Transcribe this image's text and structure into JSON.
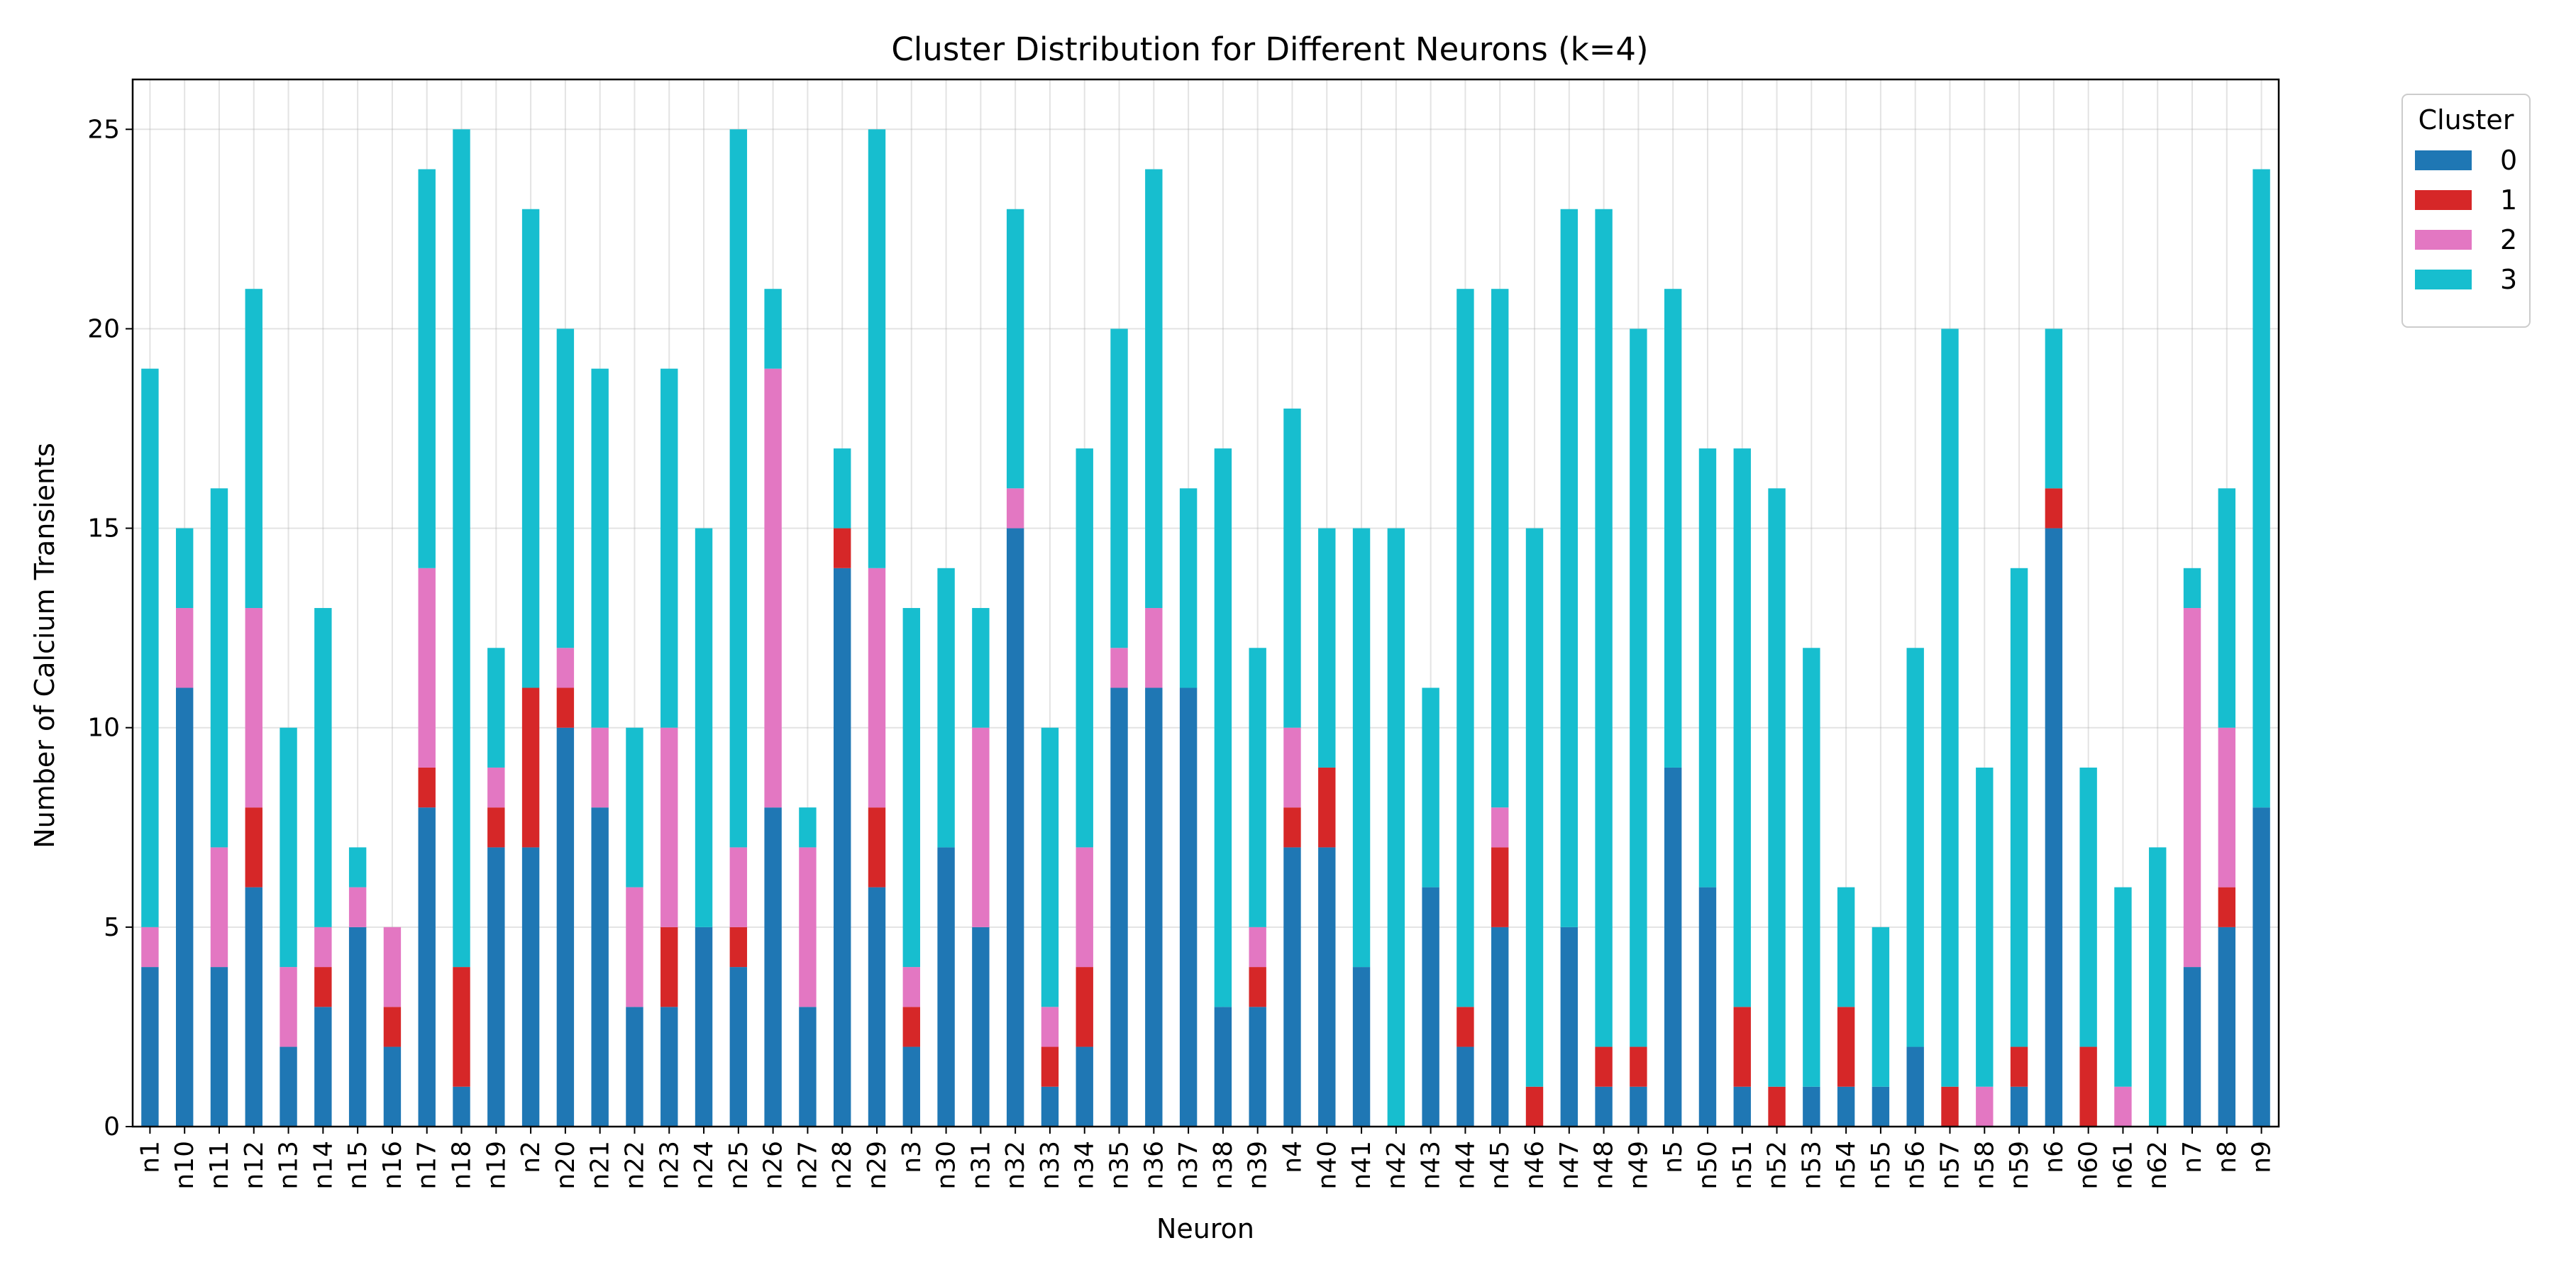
{
  "chart_data": {
    "type": "bar",
    "stacked": true,
    "title": "Cluster Distribution for Different Neurons (k=4)",
    "xlabel": "Neuron",
    "ylabel": "Number of Calcium Transients",
    "ylim": [
      0,
      26.25
    ],
    "yticks": [
      0,
      5,
      10,
      15,
      20,
      25
    ],
    "grid": true,
    "legend": {
      "title": "Cluster",
      "placement": "outside-top-right"
    },
    "categories": [
      "n1",
      "n10",
      "n11",
      "n12",
      "n13",
      "n14",
      "n15",
      "n16",
      "n17",
      "n18",
      "n19",
      "n2",
      "n20",
      "n21",
      "n22",
      "n23",
      "n24",
      "n25",
      "n26",
      "n27",
      "n28",
      "n29",
      "n3",
      "n30",
      "n31",
      "n32",
      "n33",
      "n34",
      "n35",
      "n36",
      "n37",
      "n38",
      "n39",
      "n4",
      "n40",
      "n41",
      "n42",
      "n43",
      "n44",
      "n45",
      "n46",
      "n47",
      "n48",
      "n49",
      "n5",
      "n50",
      "n51",
      "n52",
      "n53",
      "n54",
      "n55",
      "n56",
      "n57",
      "n58",
      "n59",
      "n6",
      "n60",
      "n61",
      "n62",
      "n7",
      "n8",
      "n9"
    ],
    "series": [
      {
        "name": "0",
        "color": "#1f77b4",
        "values": [
          4,
          11,
          4,
          6,
          2,
          3,
          5,
          2,
          8,
          1,
          7,
          7,
          10,
          8,
          3,
          3,
          5,
          4,
          8,
          3,
          14,
          6,
          2,
          7,
          5,
          15,
          1,
          2,
          11,
          11,
          11,
          3,
          3,
          7,
          7,
          4,
          0,
          6,
          2,
          5,
          0,
          5,
          1,
          1,
          9,
          6,
          1,
          0,
          1,
          1,
          1,
          2,
          0,
          0,
          1,
          15,
          0,
          0,
          0,
          4,
          5,
          8
        ]
      },
      {
        "name": "1",
        "color": "#d62728",
        "values": [
          0,
          0,
          0,
          2,
          0,
          1,
          0,
          1,
          1,
          3,
          1,
          4,
          1,
          0,
          0,
          2,
          0,
          1,
          0,
          0,
          1,
          2,
          1,
          0,
          0,
          0,
          1,
          2,
          0,
          0,
          0,
          0,
          1,
          1,
          2,
          0,
          0,
          0,
          1,
          2,
          1,
          0,
          1,
          1,
          0,
          0,
          2,
          1,
          0,
          2,
          0,
          0,
          1,
          0,
          1,
          1,
          2,
          0,
          0,
          0,
          1,
          0
        ]
      },
      {
        "name": "2",
        "color": "#e377c2",
        "values": [
          1,
          2,
          3,
          5,
          2,
          1,
          1,
          2,
          5,
          0,
          1,
          0,
          1,
          2,
          3,
          5,
          0,
          2,
          11,
          4,
          0,
          6,
          1,
          0,
          5,
          1,
          1,
          3,
          1,
          2,
          0,
          0,
          1,
          2,
          0,
          0,
          0,
          0,
          0,
          1,
          0,
          0,
          0,
          0,
          0,
          0,
          0,
          0,
          0,
          0,
          0,
          0,
          0,
          1,
          0,
          0,
          0,
          1,
          0,
          9,
          4,
          0
        ]
      },
      {
        "name": "3",
        "color": "#17becf",
        "values": [
          14,
          2,
          9,
          8,
          6,
          8,
          1,
          0,
          10,
          21,
          3,
          12,
          8,
          9,
          4,
          9,
          10,
          18,
          2,
          1,
          2,
          11,
          9,
          7,
          3,
          7,
          7,
          10,
          8,
          11,
          5,
          14,
          7,
          8,
          6,
          11,
          15,
          5,
          18,
          13,
          14,
          18,
          21,
          18,
          12,
          11,
          14,
          15,
          11,
          3,
          4,
          10,
          19,
          8,
          12,
          4,
          7,
          5,
          7,
          1,
          6,
          16
        ]
      }
    ]
  }
}
